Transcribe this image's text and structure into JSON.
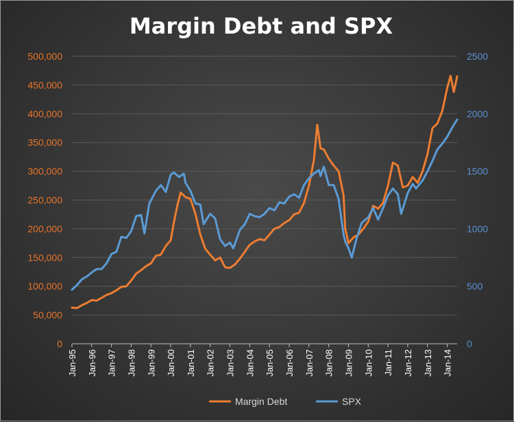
{
  "chart_data": {
    "type": "line",
    "title": "Margin Debt and SPX",
    "xlabel": "",
    "ylabel": "",
    "x_start": "Jan-95",
    "x_end": "Jul-14",
    "categories": [
      "Jan-95",
      "Jan-96",
      "Jan-97",
      "Jan-98",
      "Jan-99",
      "Jan-00",
      "Jan-01",
      "Jan-02",
      "Jan-03",
      "Jan-04",
      "Jan-05",
      "Jan-06",
      "Jan-07",
      "Jan-08",
      "Jan-09",
      "Jan-10",
      "Jan-11",
      "Jan-12",
      "Jan-13",
      "Jan-14"
    ],
    "y_left": {
      "min": 0,
      "max": 500000,
      "ticks": [
        "0",
        "50,000",
        "100,000",
        "150,000",
        "200,000",
        "250,000",
        "300,000",
        "350,000",
        "400,000",
        "450,000",
        "500,000"
      ]
    },
    "y_right": {
      "min": 0,
      "max": 2500,
      "ticks": [
        "0",
        "500",
        "1000",
        "1500",
        "2000",
        "2500"
      ]
    },
    "grid": true,
    "legend_position": "bottom",
    "series": [
      {
        "name": "Margin Debt",
        "color": "#ed7d31",
        "axis": "left",
        "points": [
          [
            "Jan-95",
            63000
          ],
          [
            "Apr-95",
            62000
          ],
          [
            "Jul-95",
            67000
          ],
          [
            "Oct-95",
            71000
          ],
          [
            "Jan-96",
            76000
          ],
          [
            "Apr-96",
            75000
          ],
          [
            "Jul-96",
            80000
          ],
          [
            "Oct-96",
            85000
          ],
          [
            "Jan-97",
            88000
          ],
          [
            "Apr-97",
            93000
          ],
          [
            "Jul-97",
            99000
          ],
          [
            "Oct-97",
            100000
          ],
          [
            "Jan-98",
            110000
          ],
          [
            "Apr-98",
            122000
          ],
          [
            "Jul-98",
            128000
          ],
          [
            "Oct-98",
            135000
          ],
          [
            "Jan-99",
            140000
          ],
          [
            "Apr-99",
            153000
          ],
          [
            "Jul-99",
            155000
          ],
          [
            "Oct-99",
            170000
          ],
          [
            "Jan-00",
            180000
          ],
          [
            "Mar-00",
            212000
          ],
          [
            "May-00",
            240000
          ],
          [
            "Jul-00",
            263000
          ],
          [
            "Oct-00",
            255000
          ],
          [
            "Jan-01",
            252000
          ],
          [
            "Apr-01",
            226000
          ],
          [
            "Jul-01",
            190000
          ],
          [
            "Oct-01",
            165000
          ],
          [
            "Jan-02",
            155000
          ],
          [
            "Apr-02",
            145000
          ],
          [
            "Jul-02",
            150000
          ],
          [
            "Oct-02",
            133000
          ],
          [
            "Jan-03",
            132000
          ],
          [
            "Apr-03",
            138000
          ],
          [
            "Jul-03",
            148000
          ],
          [
            "Oct-03",
            160000
          ],
          [
            "Jan-04",
            172000
          ],
          [
            "Apr-04",
            178000
          ],
          [
            "Jul-04",
            182000
          ],
          [
            "Oct-04",
            180000
          ],
          [
            "Jan-05",
            190000
          ],
          [
            "Apr-05",
            200000
          ],
          [
            "Jul-05",
            203000
          ],
          [
            "Oct-05",
            210000
          ],
          [
            "Jan-06",
            215000
          ],
          [
            "Apr-06",
            225000
          ],
          [
            "Jul-06",
            228000
          ],
          [
            "Oct-06",
            245000
          ],
          [
            "Jan-07",
            275000
          ],
          [
            "Apr-07",
            320000
          ],
          [
            "Jun-07",
            381000
          ],
          [
            "Aug-07",
            340000
          ],
          [
            "Oct-07",
            338000
          ],
          [
            "Jan-08",
            322000
          ],
          [
            "Apr-08",
            310000
          ],
          [
            "Jul-08",
            300000
          ],
          [
            "Oct-08",
            258000
          ],
          [
            "Nov-08",
            200000
          ],
          [
            "Jan-09",
            175000
          ],
          [
            "Apr-09",
            185000
          ],
          [
            "Jul-09",
            190000
          ],
          [
            "Oct-09",
            200000
          ],
          [
            "Jan-10",
            212000
          ],
          [
            "Apr-10",
            240000
          ],
          [
            "Jul-10",
            235000
          ],
          [
            "Oct-10",
            245000
          ],
          [
            "Jan-11",
            275000
          ],
          [
            "Apr-11",
            315000
          ],
          [
            "Jul-11",
            310000
          ],
          [
            "Oct-11",
            272000
          ],
          [
            "Jan-12",
            275000
          ],
          [
            "Apr-12",
            290000
          ],
          [
            "Jul-12",
            280000
          ],
          [
            "Oct-12",
            300000
          ],
          [
            "Jan-13",
            330000
          ],
          [
            "Apr-13",
            375000
          ],
          [
            "Jul-13",
            383000
          ],
          [
            "Oct-13",
            405000
          ],
          [
            "Jan-14",
            445000
          ],
          [
            "Mar-14",
            466000
          ],
          [
            "May-14",
            438000
          ],
          [
            "Jul-14",
            465000
          ]
        ]
      },
      {
        "name": "SPX",
        "color": "#5b9bd5",
        "axis": "right",
        "points": [
          [
            "Jan-95",
            470
          ],
          [
            "Apr-95",
            510
          ],
          [
            "Jul-95",
            560
          ],
          [
            "Oct-95",
            585
          ],
          [
            "Jan-96",
            620
          ],
          [
            "Apr-96",
            650
          ],
          [
            "Jul-96",
            650
          ],
          [
            "Oct-96",
            700
          ],
          [
            "Jan-97",
            780
          ],
          [
            "Apr-97",
            800
          ],
          [
            "Jul-97",
            930
          ],
          [
            "Oct-97",
            920
          ],
          [
            "Jan-98",
            980
          ],
          [
            "Apr-98",
            1110
          ],
          [
            "Jul-98",
            1120
          ],
          [
            "Sep-98",
            960
          ],
          [
            "Dec-98",
            1220
          ],
          [
            "Apr-99",
            1330
          ],
          [
            "Jul-99",
            1380
          ],
          [
            "Oct-99",
            1320
          ],
          [
            "Jan-00",
            1470
          ],
          [
            "Mar-00",
            1490
          ],
          [
            "Jun-00",
            1450
          ],
          [
            "Sep-00",
            1480
          ],
          [
            "Oct-00",
            1400
          ],
          [
            "Jan-01",
            1330
          ],
          [
            "Apr-01",
            1220
          ],
          [
            "Jul-01",
            1210
          ],
          [
            "Sep-01",
            1040
          ],
          [
            "Jan-02",
            1130
          ],
          [
            "Apr-02",
            1090
          ],
          [
            "Jul-02",
            910
          ],
          [
            "Oct-02",
            850
          ],
          [
            "Jan-03",
            880
          ],
          [
            "Mar-03",
            830
          ],
          [
            "Jul-03",
            990
          ],
          [
            "Oct-03",
            1040
          ],
          [
            "Jan-04",
            1130
          ],
          [
            "Apr-04",
            1110
          ],
          [
            "Jul-04",
            1100
          ],
          [
            "Oct-04",
            1130
          ],
          [
            "Jan-05",
            1180
          ],
          [
            "Apr-05",
            1160
          ],
          [
            "Jul-05",
            1230
          ],
          [
            "Oct-05",
            1220
          ],
          [
            "Jan-06",
            1280
          ],
          [
            "Apr-06",
            1300
          ],
          [
            "Jul-06",
            1270
          ],
          [
            "Oct-06",
            1380
          ],
          [
            "Jan-07",
            1440
          ],
          [
            "Apr-07",
            1480
          ],
          [
            "Jul-07",
            1510
          ],
          [
            "Aug-07",
            1460
          ],
          [
            "Oct-07",
            1540
          ],
          [
            "Jan-08",
            1380
          ],
          [
            "Apr-08",
            1380
          ],
          [
            "Jul-08",
            1260
          ],
          [
            "Oct-08",
            950
          ],
          [
            "Nov-08",
            890
          ],
          [
            "Jan-09",
            830
          ],
          [
            "Mar-09",
            750
          ],
          [
            "Jun-09",
            920
          ],
          [
            "Sep-09",
            1050
          ],
          [
            "Jan-10",
            1100
          ],
          [
            "Apr-10",
            1180
          ],
          [
            "Jul-10",
            1080
          ],
          [
            "Oct-10",
            1180
          ],
          [
            "Jan-11",
            1290
          ],
          [
            "Apr-11",
            1350
          ],
          [
            "Jul-11",
            1300
          ],
          [
            "Sep-11",
            1130
          ],
          [
            "Jan-12",
            1310
          ],
          [
            "Apr-12",
            1390
          ],
          [
            "Jun-12",
            1350
          ],
          [
            "Oct-12",
            1420
          ],
          [
            "Jan-13",
            1500
          ],
          [
            "Apr-13",
            1590
          ],
          [
            "Jul-13",
            1690
          ],
          [
            "Oct-13",
            1740
          ],
          [
            "Jan-14",
            1800
          ],
          [
            "Apr-14",
            1880
          ],
          [
            "Jul-14",
            1950
          ]
        ]
      }
    ]
  }
}
